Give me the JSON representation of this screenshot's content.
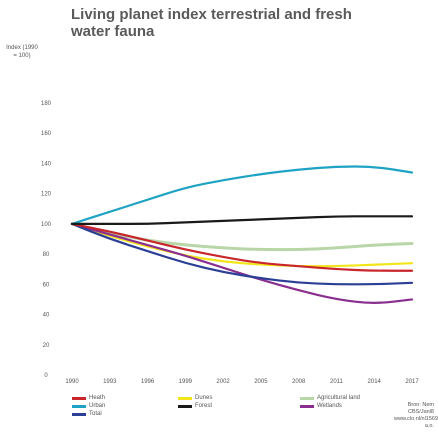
{
  "chart_data": {
    "type": "line",
    "title": "Living planet index terrestrial and fresh water fauna",
    "ylabel": "Index (1990 = 100)",
    "xlabel": "",
    "x": [
      1990,
      1993,
      1996,
      1999,
      2002,
      2005,
      2008,
      2011,
      2014,
      2017
    ],
    "x_ticks": [
      "1990",
      "1993",
      "1996",
      "1999",
      "2002",
      "2005",
      "2008",
      "2011",
      "2014",
      "2017"
    ],
    "ylim": [
      0,
      180
    ],
    "y_ticks": [
      "0",
      "20",
      "40",
      "60",
      "80",
      "100",
      "120",
      "140",
      "160",
      "180"
    ],
    "grid": false,
    "series": [
      {
        "name": "Heath",
        "color": "#c9262c",
        "values": [
          100,
          95,
          89,
          83,
          78,
          74,
          72,
          70,
          69,
          69
        ]
      },
      {
        "name": "Urban",
        "color": "#1fa3c4",
        "values": [
          100,
          108,
          116,
          124,
          129,
          133,
          136,
          138,
          138,
          134
        ]
      },
      {
        "name": "Total",
        "color": "#2b3f96",
        "values": [
          100,
          90,
          82,
          74,
          68,
          64,
          61,
          60,
          60,
          61
        ]
      },
      {
        "name": "Dunes",
        "color": "#f2e61a",
        "values": [
          100,
          92,
          85,
          79,
          75,
          73,
          72,
          72,
          73,
          74
        ]
      },
      {
        "name": "Forest",
        "color": "#1a1a1a",
        "values": [
          100,
          100,
          100,
          101,
          102,
          103,
          104,
          105,
          105,
          105
        ]
      },
      {
        "name": "Agricultural land",
        "color": "#b9d6a8",
        "values": [
          100,
          94,
          89,
          86,
          84,
          83,
          83,
          84,
          86,
          87
        ]
      },
      {
        "name": "Wetlands",
        "color": "#8a2f8f",
        "values": [
          100,
          93,
          86,
          79,
          71,
          63,
          56,
          50,
          47,
          50
        ]
      }
    ],
    "legend_position": "bottom",
    "source_text": [
      "Bron: Nem",
      "CBS/Janl8",
      "www.clo.nl/nl1569 a.o."
    ]
  }
}
